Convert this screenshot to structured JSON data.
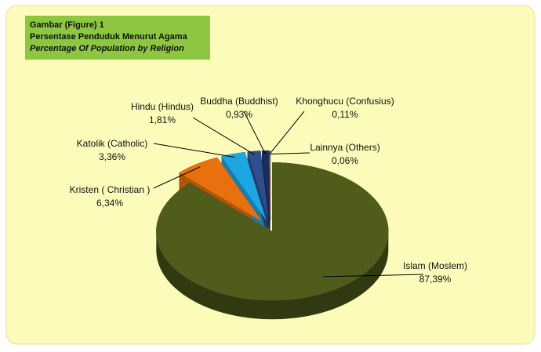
{
  "chart_data": {
    "type": "pie",
    "title": [
      "Gambar (Figure) 1",
      "Persentase Penduduk Menurut Agama",
      "Percentage Of Population by Religion"
    ],
    "categories": [
      "Islam (Moslem)",
      "Kristen ( Christian )",
      "Katolik (Catholic)",
      "Hindu (Hindus)",
      "Buddha (Buddhist)",
      "Khonghucu (Confusius)",
      "Lainnya (Others)"
    ],
    "values": [
      87.39,
      6.34,
      3.36,
      1.81,
      0.93,
      0.11,
      0.06
    ],
    "value_labels": [
      "87,39%",
      "6,34%",
      "3,36%",
      "1,81%",
      "0,93%",
      "0,11%",
      "0,06%"
    ],
    "colors": [
      "#4f5c1c",
      "#e8700e",
      "#1ea6e2",
      "#2d4f8e",
      "#1b2d5c",
      "#c8102e",
      "#8a8a8a"
    ]
  }
}
